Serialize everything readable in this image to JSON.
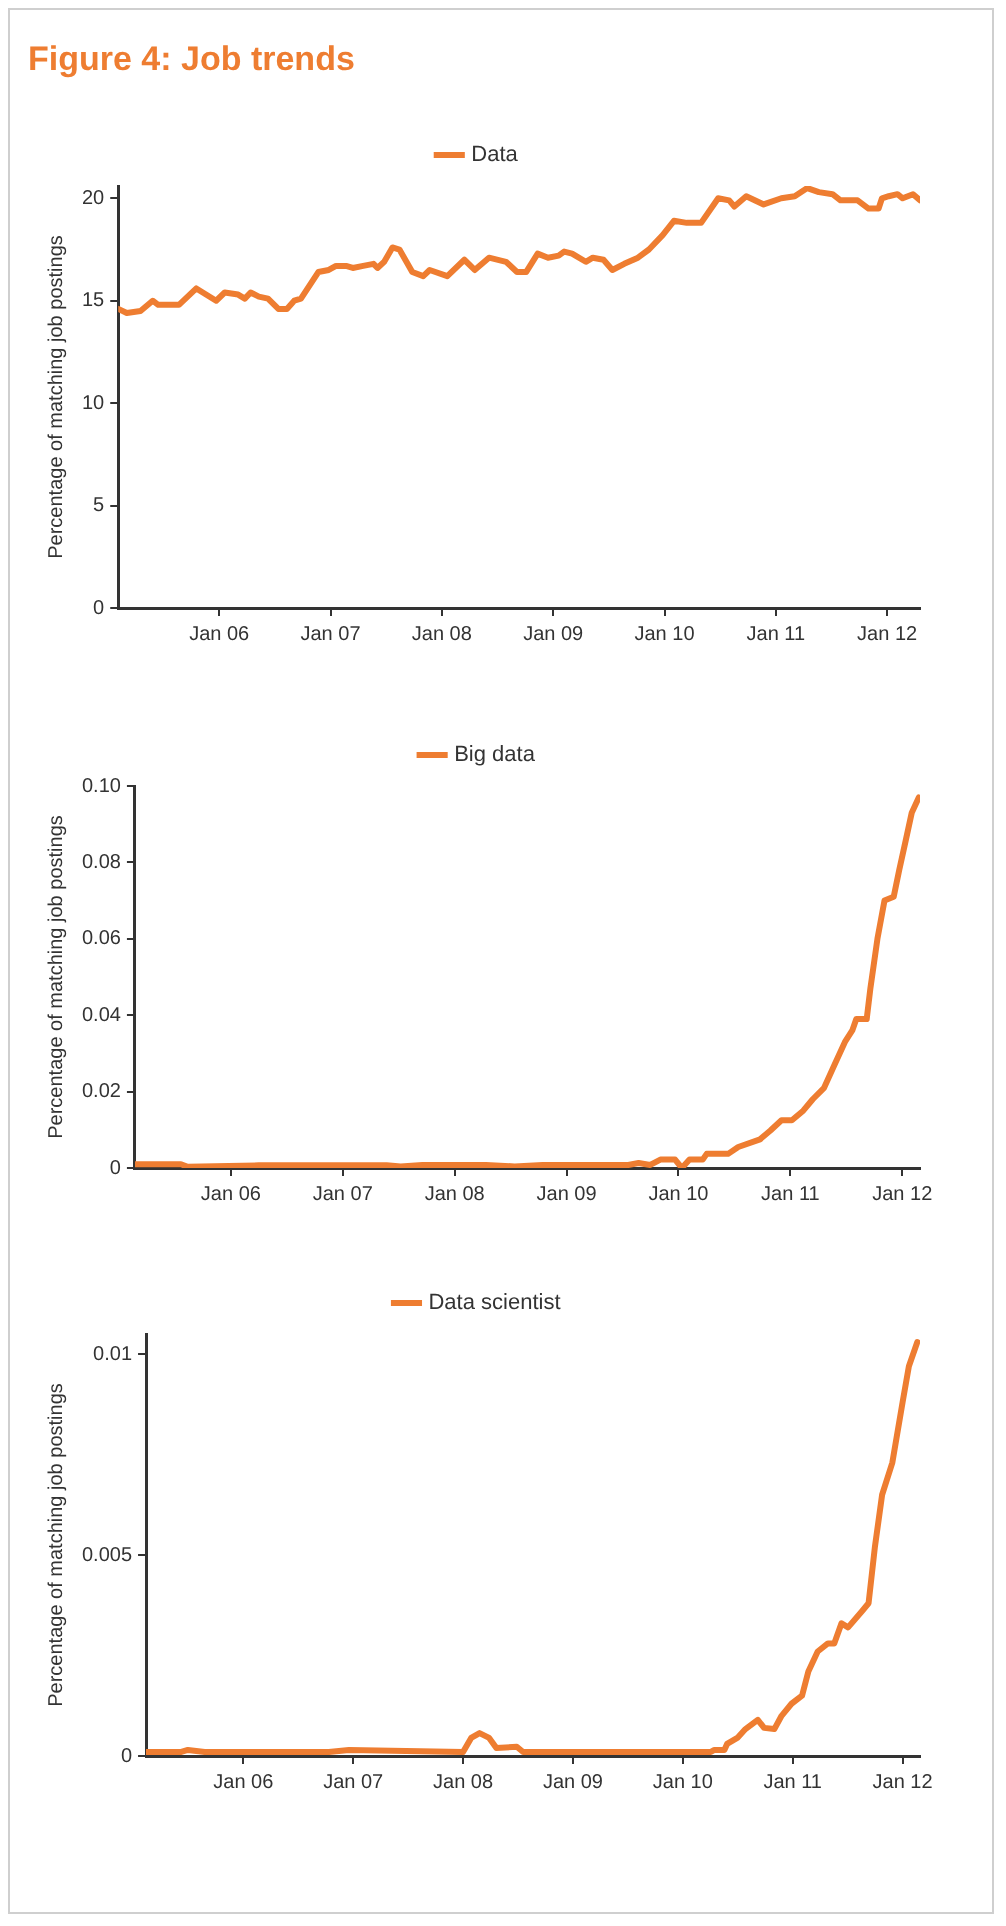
{
  "chart_data": [
    {
      "type": "line",
      "title": "Figure 4: Job trends",
      "ylabel": "Percentage of matching job postings",
      "legend": "top",
      "grid": false,
      "marker": "none",
      "line_style": "solid",
      "xlim": [
        "2005-02-04",
        "2012-04-18"
      ],
      "xticks": [
        {
          "value": "2006-01-01",
          "label": "Jan 06"
        },
        {
          "value": "2007-01-01",
          "label": "Jan 07"
        },
        {
          "value": "2008-01-01",
          "label": "Jan 08"
        },
        {
          "value": "2009-01-01",
          "label": "Jan 09"
        },
        {
          "value": "2010-01-01",
          "label": "Jan 10"
        },
        {
          "value": "2011-01-01",
          "label": "Jan 11"
        },
        {
          "value": "2012-01-01",
          "label": "Jan 12"
        }
      ],
      "ylim": [
        0,
        20.6
      ],
      "yticks": [
        0,
        5,
        10,
        15,
        20
      ],
      "series": [
        {
          "name": "Data",
          "color": "#ee7d31",
          "x": [
            "2005-02-04",
            "2005-03-04",
            "2005-04-18",
            "2005-05-28",
            "2005-06-15",
            "2005-08-22",
            "2005-10-18",
            "2005-12-22",
            "2006-01-19",
            "2006-03-04",
            "2006-03-26",
            "2006-04-14",
            "2006-05-11",
            "2006-06-10",
            "2006-07-14",
            "2006-08-11",
            "2006-09-04",
            "2006-09-26",
            "2006-11-22",
            "2006-12-26",
            "2007-01-19",
            "2007-02-21",
            "2007-03-15",
            "2007-04-18",
            "2007-05-22",
            "2007-06-04",
            "2007-06-26",
            "2007-07-23",
            "2007-08-15",
            "2007-09-26",
            "2007-11-01",
            "2007-11-22",
            "2008-01-19",
            "2008-03-15",
            "2008-04-18",
            "2008-06-04",
            "2008-07-30",
            "2008-09-04",
            "2008-10-04",
            "2008-11-11",
            "2008-12-15",
            "2009-01-19",
            "2009-02-06",
            "2009-03-04",
            "2009-04-18",
            "2009-05-11",
            "2009-06-15",
            "2009-07-14",
            "2009-08-22",
            "2009-10-06",
            "2009-11-11",
            "2009-12-26",
            "2010-02-01",
            "2010-03-15",
            "2010-05-01",
            "2010-06-26",
            "2010-08-01",
            "2010-08-18",
            "2010-09-26",
            "2010-11-22",
            "2011-01-19",
            "2011-03-04",
            "2011-04-14",
            "2011-05-22",
            "2011-07-06",
            "2011-08-01",
            "2011-09-26",
            "2011-11-01",
            "2011-12-04",
            "2011-12-15",
            "2012-01-06",
            "2012-02-04",
            "2012-02-21",
            "2012-03-26",
            "2012-04-18"
          ],
          "values": [
            14.6,
            14.4,
            14.5,
            15.0,
            14.8,
            14.8,
            15.6,
            15.0,
            15.4,
            15.3,
            15.1,
            15.4,
            15.2,
            15.1,
            14.6,
            14.6,
            15.0,
            15.1,
            16.4,
            16.5,
            16.7,
            16.7,
            16.6,
            16.7,
            16.8,
            16.6,
            16.9,
            17.6,
            17.5,
            16.4,
            16.2,
            16.5,
            16.2,
            17.0,
            16.5,
            17.1,
            16.9,
            16.4,
            16.4,
            17.3,
            17.1,
            17.2,
            17.4,
            17.3,
            16.9,
            17.1,
            17.0,
            16.5,
            16.8,
            17.1,
            17.5,
            18.2,
            18.9,
            18.8,
            18.8,
            20.0,
            19.9,
            19.6,
            20.1,
            19.7,
            20.0,
            20.1,
            20.5,
            20.3,
            20.2,
            19.9,
            19.9,
            19.5,
            19.5,
            20.0,
            20.1,
            20.2,
            20.0,
            20.2,
            19.9
          ]
        }
      ]
    },
    {
      "type": "line",
      "ylabel": "Percentage of matching job postings",
      "legend": "top",
      "grid": false,
      "marker": "none",
      "line_style": "solid",
      "xlim": [
        "2005-02-22",
        "2012-02-28"
      ],
      "xticks": [
        {
          "value": "2006-01-01",
          "label": "Jan 06"
        },
        {
          "value": "2007-01-01",
          "label": "Jan 07"
        },
        {
          "value": "2008-01-01",
          "label": "Jan 08"
        },
        {
          "value": "2009-01-01",
          "label": "Jan 09"
        },
        {
          "value": "2010-01-01",
          "label": "Jan 10"
        },
        {
          "value": "2011-01-01",
          "label": "Jan 11"
        },
        {
          "value": "2012-01-01",
          "label": "Jan 12"
        }
      ],
      "ylim": [
        0,
        0.1
      ],
      "yticks": [
        0,
        0.02,
        0.04,
        0.06,
        0.08,
        {
          "value": 0.1,
          "label": "0.10"
        }
      ],
      "series": [
        {
          "name": "Big data",
          "color": "#ee7d31",
          "x": [
            "2005-02-22",
            "2005-07-22",
            "2005-08-13",
            "2006-04-02",
            "2007-05-24",
            "2007-07-09",
            "2007-09-18",
            "2008-04-12",
            "2008-07-15",
            "2008-10-15",
            "2009-07-21",
            "2009-08-24",
            "2009-10-01",
            "2009-11-03",
            "2009-12-21",
            "2010-01-12",
            "2010-02-06",
            "2010-03-21",
            "2010-04-03",
            "2010-06-12",
            "2010-07-15",
            "2010-09-24",
            "2010-10-28",
            "2010-12-03",
            "2011-01-06",
            "2011-02-12",
            "2011-03-15",
            "2011-04-21",
            "2011-05-25",
            "2011-06-28",
            "2011-07-22",
            "2011-08-04",
            "2011-09-07",
            "2011-09-19",
            "2011-10-12",
            "2011-11-04",
            "2011-12-04",
            "2011-12-22",
            "2012-01-13",
            "2012-02-01",
            "2012-02-24"
          ],
          "values": [
            0.001,
            0.001,
            0.0003,
            0.0007,
            0.0007,
            0.0004,
            0.0008,
            0.0008,
            0.0004,
            0.0008,
            0.0008,
            0.0013,
            0.0008,
            0.0022,
            0.0022,
            0,
            0.0022,
            0.0022,
            0.0037,
            0.0037,
            0.0055,
            0.0075,
            0.0098,
            0.0125,
            0.0125,
            0.015,
            0.018,
            0.021,
            0.027,
            0.033,
            0.036,
            0.039,
            0.039,
            0.047,
            0.06,
            0.07,
            0.071,
            0.078,
            0.086,
            0.093,
            0.097
          ]
        }
      ]
    },
    {
      "type": "line",
      "ylabel": "Percentage of matching job postings",
      "legend": "top",
      "grid": false,
      "marker": "none",
      "line_style": "solid",
      "xlim": [
        "2005-02-12",
        "2012-02-28"
      ],
      "xticks": [
        {
          "value": "2006-01-01",
          "label": "Jan 06"
        },
        {
          "value": "2007-01-01",
          "label": "Jan 07"
        },
        {
          "value": "2008-01-01",
          "label": "Jan 08"
        },
        {
          "value": "2009-01-01",
          "label": "Jan 09"
        },
        {
          "value": "2010-01-01",
          "label": "Jan 10"
        },
        {
          "value": "2011-01-01",
          "label": "Jan 11"
        },
        {
          "value": "2012-01-01",
          "label": "Jan 12"
        }
      ],
      "ylim": [
        0,
        0.0105
      ],
      "yticks": [
        0,
        0.005,
        0.01
      ],
      "series": [
        {
          "name": "Data scientist",
          "color": "#ee7d31",
          "x": [
            "2005-02-12",
            "2005-06-09",
            "2005-07-01",
            "2005-08-26",
            "2006-10-12",
            "2006-12-18",
            "2008-01-01",
            "2008-01-28",
            "2008-02-25",
            "2008-03-28",
            "2008-04-21",
            "2008-06-28",
            "2008-07-19",
            "2009-01-04",
            "2009-03-19",
            "2010-04-04",
            "2010-04-16",
            "2010-05-19",
            "2010-05-28",
            "2010-07-01",
            "2010-07-28",
            "2010-09-07",
            "2010-09-28",
            "2010-11-01",
            "2010-11-25",
            "2010-12-28",
            "2011-02-01",
            "2011-02-22",
            "2011-03-25",
            "2011-04-28",
            "2011-05-19",
            "2011-06-12",
            "2011-07-04",
            "2011-08-19",
            "2011-09-10",
            "2011-10-01",
            "2011-10-25",
            "2011-11-28",
            "2012-01-01",
            "2012-01-22",
            "2012-02-19"
          ],
          "values": [
            0.0001,
            0.0001,
            0.00015,
            0.0001,
            0.0001,
            0.00015,
            0.0001,
            0.00045,
            0.00057,
            0.00045,
            0.0002,
            0.00023,
            0.0001,
            0.0001,
            0.0001,
            0.0001,
            0.00015,
            0.00015,
            0.0003,
            0.00045,
            0.00067,
            0.0009,
            0.0007,
            0.00067,
            0.001,
            0.0013,
            0.0015,
            0.0021,
            0.0026,
            0.0028,
            0.0028,
            0.0033,
            0.0032,
            0.0036,
            0.0038,
            0.0052,
            0.0065,
            0.0073,
            0.0088,
            0.0097,
            0.0103
          ]
        }
      ]
    }
  ]
}
